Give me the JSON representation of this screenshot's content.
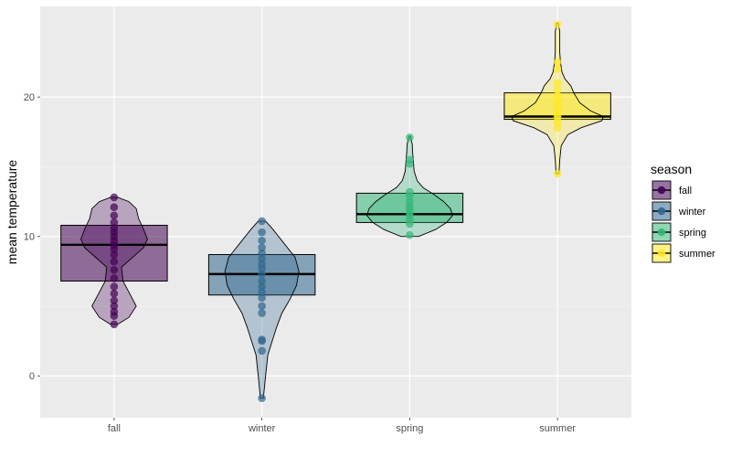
{
  "chart_data": {
    "type": "violin+box+points",
    "xlabel": "",
    "ylabel": "mean temperature",
    "ylim": [
      -3,
      26.5
    ],
    "y_ticks": [
      0,
      10,
      20
    ],
    "categories": [
      "fall",
      "winter",
      "spring",
      "summer"
    ],
    "grid": true,
    "legend": {
      "title": "season",
      "position": "right"
    },
    "series": [
      {
        "name": "fall",
        "color": "#440154",
        "box": {
          "q1": 6.8,
          "median": 9.4,
          "q3": 10.8
        },
        "violin": {
          "min": 3.7,
          "max": 12.8,
          "profile": [
            [
              3.7,
              0.05
            ],
            [
              4.2,
              0.2
            ],
            [
              5.0,
              0.3
            ],
            [
              6.0,
              0.2
            ],
            [
              6.8,
              0.12
            ],
            [
              7.8,
              0.1
            ],
            [
              8.5,
              0.25
            ],
            [
              9.2,
              0.4
            ],
            [
              9.8,
              0.45
            ],
            [
              10.5,
              0.4
            ],
            [
              11.3,
              0.33
            ],
            [
              12.0,
              0.3
            ],
            [
              12.5,
              0.2
            ],
            [
              12.8,
              0.05
            ]
          ]
        },
        "points": [
          3.7,
          4.3,
          4.6,
          5.0,
          5.4,
          5.9,
          6.4,
          7.0,
          7.6,
          8.2,
          8.7,
          9.1,
          9.4,
          9.7,
          10.0,
          10.3,
          10.6,
          11.0,
          11.5,
          12.1,
          12.8
        ]
      },
      {
        "name": "winter",
        "color": "#31688e",
        "box": {
          "q1": 5.8,
          "median": 7.3,
          "q3": 8.7
        },
        "violin": {
          "min": -1.6,
          "max": 11.1,
          "profile": [
            [
              -1.6,
              0.02
            ],
            [
              0.0,
              0.05
            ],
            [
              1.5,
              0.08
            ],
            [
              2.5,
              0.14
            ],
            [
              3.5,
              0.2
            ],
            [
              4.5,
              0.27
            ],
            [
              5.5,
              0.38
            ],
            [
              6.5,
              0.47
            ],
            [
              7.5,
              0.5
            ],
            [
              8.5,
              0.45
            ],
            [
              9.5,
              0.3
            ],
            [
              10.5,
              0.15
            ],
            [
              11.1,
              0.05
            ]
          ]
        },
        "points": [
          -1.6,
          1.8,
          2.5,
          2.6,
          4.5,
          5.0,
          5.6,
          6.0,
          6.4,
          6.8,
          7.3,
          7.7,
          8.0,
          8.4,
          8.8,
          9.2,
          9.7,
          10.3,
          11.1
        ]
      },
      {
        "name": "spring",
        "color": "#35b779",
        "box": {
          "q1": 11.0,
          "median": 11.6,
          "q3": 13.1
        },
        "violin": {
          "min": 10.0,
          "max": 17.2,
          "profile": [
            [
              10.0,
              0.12
            ],
            [
              10.5,
              0.35
            ],
            [
              11.0,
              0.5
            ],
            [
              11.5,
              0.58
            ],
            [
              12.0,
              0.55
            ],
            [
              12.5,
              0.46
            ],
            [
              13.0,
              0.33
            ],
            [
              13.5,
              0.18
            ],
            [
              14.0,
              0.1
            ],
            [
              14.7,
              0.06
            ],
            [
              15.4,
              0.05
            ],
            [
              16.0,
              0.04
            ],
            [
              16.6,
              0.035
            ],
            [
              17.2,
              0.01
            ]
          ]
        },
        "points": [
          10.1,
          10.9,
          11.2,
          11.5,
          11.7,
          12.0,
          12.2,
          12.5,
          12.9,
          13.2,
          15.2,
          15.5,
          17.1
        ]
      },
      {
        "name": "summer",
        "color": "#fde725",
        "box": {
          "q1": 18.4,
          "median": 18.6,
          "q3": 20.3
        },
        "violin": {
          "min": 14.5,
          "max": 25.3,
          "profile": [
            [
              14.5,
              0.02
            ],
            [
              15.5,
              0.03
            ],
            [
              16.5,
              0.05
            ],
            [
              17.3,
              0.14
            ],
            [
              17.8,
              0.32
            ],
            [
              18.3,
              0.6
            ],
            [
              18.6,
              0.62
            ],
            [
              19.0,
              0.45
            ],
            [
              19.6,
              0.3
            ],
            [
              20.3,
              0.22
            ],
            [
              20.8,
              0.18
            ],
            [
              21.3,
              0.1
            ],
            [
              21.8,
              0.06
            ],
            [
              22.5,
              0.04
            ],
            [
              23.2,
              0.03
            ],
            [
              24.0,
              0.03
            ],
            [
              24.7,
              0.03
            ],
            [
              25.3,
              0.01
            ]
          ]
        },
        "points": [
          14.5,
          17.8,
          18.2,
          18.5,
          18.7,
          19.0,
          19.3,
          19.7,
          20.1,
          20.5,
          21.0,
          22.0,
          22.5,
          25.2
        ]
      }
    ]
  }
}
